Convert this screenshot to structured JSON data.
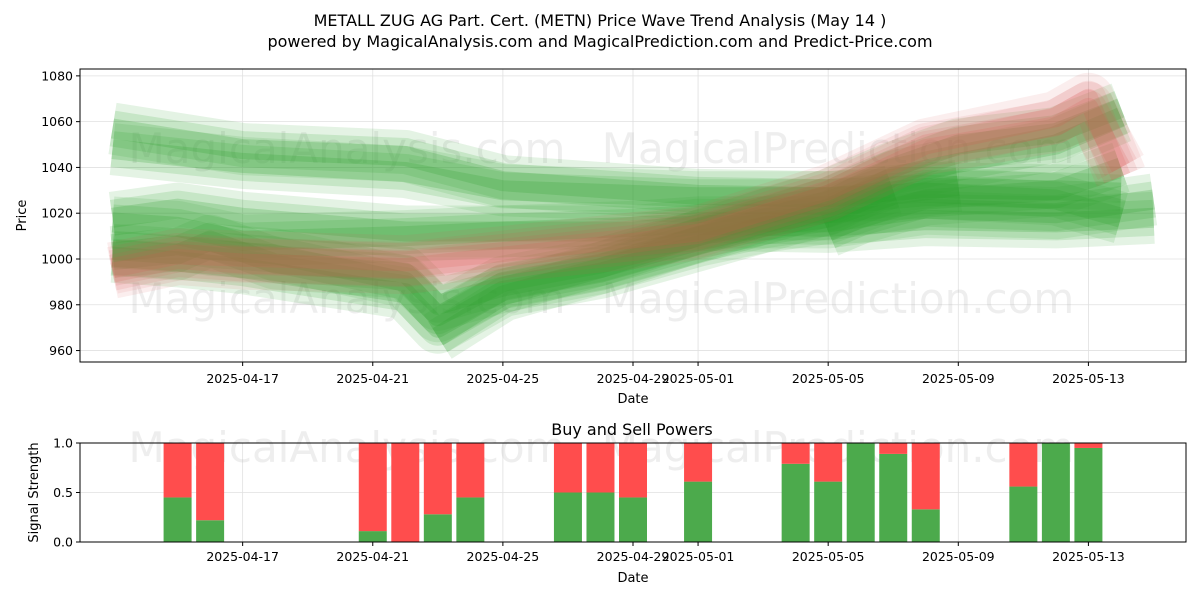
{
  "chart_data": [
    {
      "type": "line",
      "title": "METALL ZUG AG Part. Cert. (METN) Price Wave Trend Analysis (May 14 )",
      "subtitle": "powered by MagicalAnalysis.com and MagicalPrediction.com and Predict-Price.com",
      "xlabel": "Date",
      "ylabel": "Price",
      "ylim": [
        955,
        1083
      ],
      "yticks": [
        960,
        980,
        1000,
        1020,
        1040,
        1060,
        1080
      ],
      "xlim": [
        "2025-04-12",
        "2025-05-16"
      ],
      "xticks": [
        "2025-04-17",
        "2025-04-21",
        "2025-04-25",
        "2025-04-29",
        "2025-05-01",
        "2025-05-05",
        "2025-05-09",
        "2025-05-13"
      ],
      "grid": true,
      "watermarks": [
        "MagicalAnalysis.com",
        "MagicalPrediction.com"
      ],
      "band_colors": {
        "up": "#2ca02c",
        "down": "#d9534f"
      },
      "bands": [
        {
          "dir": "up",
          "points": [
            [
              "2025-04-13",
              1048
            ],
            [
              "2025-04-17",
              1042
            ],
            [
              "2025-04-22",
              1038
            ],
            [
              "2025-04-25",
              1030
            ],
            [
              "2025-04-29",
              1028
            ],
            [
              "2025-05-01",
              1027
            ],
            [
              "2025-05-05",
              1027
            ],
            [
              "2025-05-08",
              1029
            ],
            [
              "2025-05-12",
              1026
            ],
            [
              "2025-05-14",
              1018
            ]
          ]
        },
        {
          "dir": "up",
          "points": [
            [
              "2025-04-13",
              1057
            ],
            [
              "2025-04-17",
              1048
            ],
            [
              "2025-04-22",
              1045
            ],
            [
              "2025-04-25",
              1034
            ],
            [
              "2025-04-29",
              1030
            ],
            [
              "2025-05-01",
              1028
            ],
            [
              "2025-05-05",
              1027
            ],
            [
              "2025-05-08",
              1031
            ],
            [
              "2025-05-12",
              1030
            ],
            [
              "2025-05-14",
              1029
            ]
          ]
        },
        {
          "dir": "up",
          "points": [
            [
              "2025-04-13",
              1016
            ],
            [
              "2025-04-15",
              1014
            ],
            [
              "2025-04-17",
              1008
            ],
            [
              "2025-04-22",
              1010
            ],
            [
              "2025-04-25",
              1012
            ],
            [
              "2025-04-29",
              1012
            ],
            [
              "2025-05-01",
              1015
            ],
            [
              "2025-05-05",
              1014
            ],
            [
              "2025-05-08",
              1017
            ],
            [
              "2025-05-12",
              1016
            ],
            [
              "2025-05-15",
              1018
            ]
          ]
        },
        {
          "dir": "up",
          "points": [
            [
              "2025-04-13",
              1018
            ],
            [
              "2025-04-15",
              1022
            ],
            [
              "2025-04-17",
              1018
            ],
            [
              "2025-04-22",
              1012
            ],
            [
              "2025-04-25",
              1012
            ],
            [
              "2025-04-29",
              1014
            ],
            [
              "2025-05-01",
              1016
            ],
            [
              "2025-05-05",
              1016
            ],
            [
              "2025-05-08",
              1022
            ],
            [
              "2025-05-12",
              1020
            ],
            [
              "2025-05-15",
              1026
            ]
          ]
        },
        {
          "dir": "up",
          "points": [
            [
              "2025-04-13",
              1003
            ],
            [
              "2025-04-15",
              1006
            ],
            [
              "2025-04-16",
              1004
            ],
            [
              "2025-04-18",
              1002
            ],
            [
              "2025-04-22",
              990
            ],
            [
              "2025-04-23",
              975
            ],
            [
              "2025-04-25",
              990
            ],
            [
              "2025-04-28",
              998
            ],
            [
              "2025-05-01",
              1010
            ],
            [
              "2025-05-03",
              1016
            ],
            [
              "2025-05-05",
              1020
            ],
            [
              "2025-05-07",
              1030
            ]
          ]
        },
        {
          "dir": "up",
          "points": [
            [
              "2025-04-13",
              1004
            ],
            [
              "2025-04-15",
              1002
            ],
            [
              "2025-04-16",
              1008
            ],
            [
              "2025-04-18",
              998
            ],
            [
              "2025-04-22",
              994
            ],
            [
              "2025-04-23",
              980
            ],
            [
              "2025-04-25",
              988
            ],
            [
              "2025-04-28",
              996
            ],
            [
              "2025-05-01",
              1008
            ],
            [
              "2025-05-03",
              1014
            ],
            [
              "2025-05-05",
              1018
            ],
            [
              "2025-05-07",
              1028
            ],
            [
              "2025-05-09",
              1032
            ]
          ]
        },
        {
          "dir": "up",
          "points": [
            [
              "2025-04-13",
              1001
            ],
            [
              "2025-04-15",
              999
            ],
            [
              "2025-04-17",
              996
            ],
            [
              "2025-04-22",
              985
            ],
            [
              "2025-04-23",
              970
            ],
            [
              "2025-04-25",
              986
            ],
            [
              "2025-04-28",
              994
            ],
            [
              "2025-05-01",
              1006
            ],
            [
              "2025-05-05",
              1022
            ],
            [
              "2025-05-07",
              1036
            ],
            [
              "2025-05-09",
              1042
            ],
            [
              "2025-05-12",
              1050
            ],
            [
              "2025-05-14",
              1062
            ]
          ]
        },
        {
          "dir": "up",
          "points": [
            [
              "2025-04-23",
              966
            ],
            [
              "2025-04-25",
              984
            ],
            [
              "2025-04-28",
              996
            ],
            [
              "2025-05-01",
              1010
            ],
            [
              "2025-05-05",
              1028
            ],
            [
              "2025-05-07",
              1040
            ],
            [
              "2025-05-09",
              1050
            ],
            [
              "2025-05-12",
              1055
            ],
            [
              "2025-05-14",
              1066
            ]
          ]
        },
        {
          "dir": "up",
          "points": [
            [
              "2025-05-05",
              1012
            ],
            [
              "2025-05-06",
              1018
            ],
            [
              "2025-05-08",
              1026
            ],
            [
              "2025-05-12",
              1030
            ],
            [
              "2025-05-14",
              1040
            ]
          ]
        },
        {
          "dir": "down",
          "points": [
            [
              "2025-04-13",
              996
            ],
            [
              "2025-04-15",
              1002
            ],
            [
              "2025-04-17",
              1001
            ],
            [
              "2025-04-22",
              999
            ],
            [
              "2025-04-25",
              1003
            ],
            [
              "2025-04-29",
              1009
            ],
            [
              "2025-05-01",
              1012
            ],
            [
              "2025-05-05",
              1030
            ],
            [
              "2025-05-08",
              1050
            ],
            [
              "2025-05-12",
              1062
            ],
            [
              "2025-05-13",
              1070
            ],
            [
              "2025-05-14",
              1036
            ]
          ]
        },
        {
          "dir": "down",
          "points": [
            [
              "2025-04-13",
              994
            ],
            [
              "2025-04-15",
              1000
            ],
            [
              "2025-04-17",
              998
            ],
            [
              "2025-04-22",
              996
            ],
            [
              "2025-04-25",
              1001
            ],
            [
              "2025-04-29",
              1007
            ],
            [
              "2025-05-01",
              1011
            ],
            [
              "2025-05-05",
              1028
            ],
            [
              "2025-05-08",
              1048
            ],
            [
              "2025-05-12",
              1058
            ],
            [
              "2025-05-13",
              1066
            ],
            [
              "2025-05-14",
              1040
            ]
          ]
        }
      ]
    },
    {
      "type": "bar",
      "title": "Buy and Sell Powers",
      "xlabel": "Date",
      "ylabel": "Signal Strength",
      "ylim": [
        0,
        1.0
      ],
      "yticks": [
        "0.0",
        "0.5",
        "1.0"
      ],
      "xlim": [
        "2025-04-12",
        "2025-05-16"
      ],
      "xticks": [
        "2025-04-17",
        "2025-04-21",
        "2025-04-25",
        "2025-04-29",
        "2025-05-01",
        "2025-05-05",
        "2025-05-09",
        "2025-05-13"
      ],
      "grid": true,
      "series_colors": {
        "buy": "#4caa4c",
        "sell": "#ff4d4d"
      },
      "categories": [
        "2025-04-15",
        "2025-04-16",
        "2025-04-21",
        "2025-04-22",
        "2025-04-23",
        "2025-04-24",
        "2025-04-27",
        "2025-04-28",
        "2025-04-29",
        "2025-05-01",
        "2025-05-04",
        "2025-05-05",
        "2025-05-06",
        "2025-05-07",
        "2025-05-08",
        "2025-05-11",
        "2025-05-12",
        "2025-05-13"
      ],
      "series": [
        {
          "values": [
            0.45,
            0.22,
            0.11,
            0.0,
            0.28,
            0.45,
            0.5,
            0.5,
            0.45,
            0.61,
            0.79,
            0.61,
            1.0,
            0.89,
            0.33,
            0.56,
            1.0,
            0.95
          ]
        },
        {
          "values": [
            0.55,
            0.78,
            0.89,
            1.0,
            0.72,
            0.55,
            0.5,
            0.5,
            0.55,
            0.39,
            0.21,
            0.39,
            0.0,
            0.11,
            0.67,
            0.44,
            0.0,
            0.05
          ]
        }
      ]
    }
  ]
}
